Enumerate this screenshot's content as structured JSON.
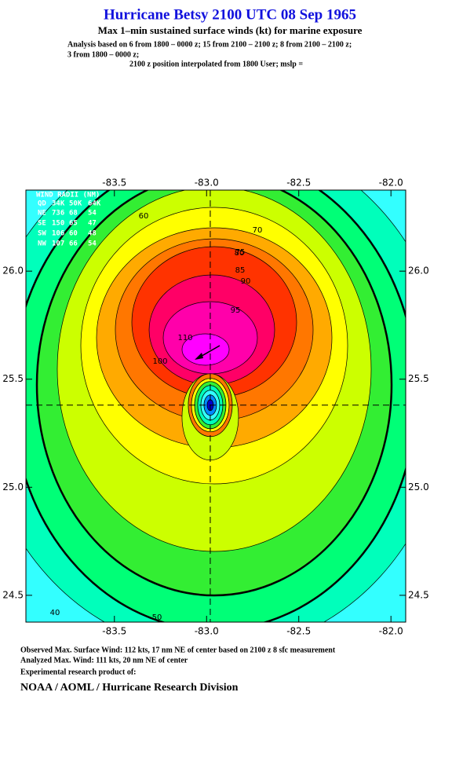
{
  "chart_data": {
    "type": "contour",
    "title": "Hurricane Betsy 2100 UTC 08 Sep 1965",
    "subtitle": "Max 1–min sustained surface winds (kt) for marine exposure",
    "analysis_lines": [
      "Analysis based on  6 from 1800 – 0000 z;  15 from 2100 – 2100 z;  8 from 2100 – 2100 z;",
      "3 from 1800 – 0000 z;",
      "2100 z position interpolated from 1800 User; mslp ="
    ],
    "xlim": [
      -83.98,
      -81.92
    ],
    "ylim": [
      24.376,
      26.375
    ],
    "xticks": [
      -83.5,
      {
        "value": -83,
        "label": "-83.0"
      },
      -82.5,
      {
        "value": -82,
        "label": "-82.0"
      }
    ],
    "yticks": [
      24.5,
      {
        "value": 25,
        "label": "25.0"
      },
      25.5,
      {
        "value": 26,
        "label": "26.0"
      }
    ],
    "background": "#33ffff",
    "bold_levels": [
      50,
      60
    ],
    "contours": [
      {
        "level": 40,
        "color": "#00ffbb"
      },
      {
        "level": 50,
        "color": "#00ff77"
      },
      {
        "level": 60,
        "color": "#33ee33"
      },
      {
        "level": 70,
        "color": "#ccff00"
      },
      {
        "level": 75,
        "color": "#ffff00"
      },
      {
        "level": 80,
        "color": "#ffaa00"
      },
      {
        "level": 85,
        "color": "#ff7700"
      },
      {
        "level": 90,
        "color": "#ff3300"
      },
      {
        "level": 95,
        "color": "#ff0066"
      },
      {
        "level": 100,
        "color": "#ff00aa"
      },
      {
        "level": 110,
        "color": "#ff00ff"
      }
    ],
    "center": {
      "lon": -82.98,
      "lat": 25.38
    },
    "wind_radii": {
      "title": "WIND RADII (NM)",
      "header": [
        "QD",
        "34K",
        "50K",
        "64K"
      ],
      "rows": [
        [
          "NE",
          736,
          68,
          54
        ],
        [
          "SE",
          150,
          65,
          47
        ],
        [
          "SW",
          106,
          60,
          48
        ],
        [
          "NW",
          107,
          66,
          54
        ]
      ]
    },
    "footer": [
      "Observed Max. Surface Wind: 112 kts, 17 nm NE of center based on 2100 z 8 sfc measurement",
      "Analyzed Max. Wind: 111 kts, 20 nm NE of center",
      "Experimental research product of:"
    ],
    "credit": "NOAA / AOML / Hurricane Research Division"
  }
}
